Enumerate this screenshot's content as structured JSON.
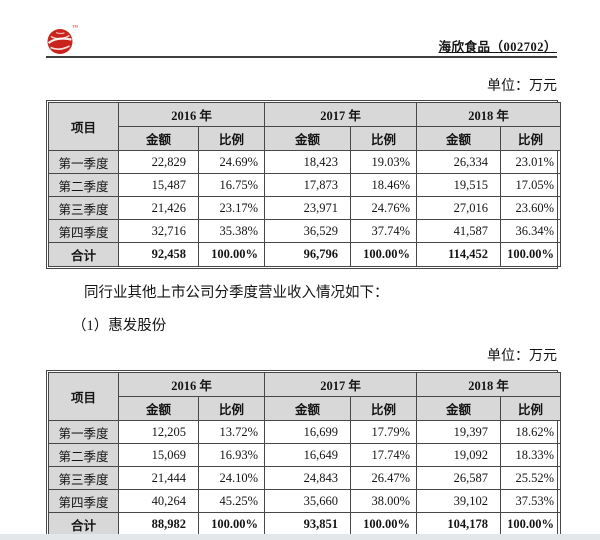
{
  "header": {
    "title": "海欣食品（002702）",
    "logo": "haixin-red-seal-logo"
  },
  "sections": {
    "unit_label_top": "单位：万元",
    "paragraph": "同行业其他上市公司分季度营业收入情况如下：",
    "subheading": "（1）惠发股份",
    "unit_label_bottom": "单位：万元"
  },
  "table_header": {
    "item": "项目",
    "years": [
      "2016 年",
      "2017 年",
      "2018 年"
    ],
    "amount": "金额",
    "ratio": "比例"
  },
  "tables": [
    {
      "company": "海欣食品",
      "rows": [
        {
          "label": "第一季度",
          "values": [
            "22,829",
            "24.69%",
            "18,423",
            "19.03%",
            "26,334",
            "23.01%"
          ],
          "bold": false
        },
        {
          "label": "第二季度",
          "values": [
            "15,487",
            "16.75%",
            "17,873",
            "18.46%",
            "19,515",
            "17.05%"
          ],
          "bold": false
        },
        {
          "label": "第三季度",
          "values": [
            "21,426",
            "23.17%",
            "23,971",
            "24.76%",
            "27,016",
            "23.60%"
          ],
          "bold": false
        },
        {
          "label": "第四季度",
          "values": [
            "32,716",
            "35.38%",
            "36,529",
            "37.74%",
            "41,587",
            "36.34%"
          ],
          "bold": false
        },
        {
          "label": "合计",
          "values": [
            "92,458",
            "100.00%",
            "96,796",
            "100.00%",
            "114,452",
            "100.00%"
          ],
          "bold": true
        }
      ]
    },
    {
      "company": "惠发股份",
      "rows": [
        {
          "label": "第一季度",
          "values": [
            "12,205",
            "13.72%",
            "16,699",
            "17.79%",
            "19,397",
            "18.62%"
          ],
          "bold": false
        },
        {
          "label": "第二季度",
          "values": [
            "15,069",
            "16.93%",
            "16,649",
            "17.74%",
            "19,092",
            "18.33%"
          ],
          "bold": false
        },
        {
          "label": "第三季度",
          "values": [
            "21,444",
            "24.10%",
            "24,843",
            "26.47%",
            "26,587",
            "25.52%"
          ],
          "bold": false
        },
        {
          "label": "第四季度",
          "values": [
            "40,264",
            "45.25%",
            "35,660",
            "38.00%",
            "39,102",
            "37.53%"
          ],
          "bold": false
        },
        {
          "label": "合计",
          "values": [
            "88,982",
            "100.00%",
            "93,851",
            "100.00%",
            "104,178",
            "100.00%"
          ],
          "bold": true
        }
      ]
    }
  ],
  "colors": {
    "table_header_bg": "#d8d8d8",
    "logo_red": "#c8231c",
    "border": "#474747"
  }
}
